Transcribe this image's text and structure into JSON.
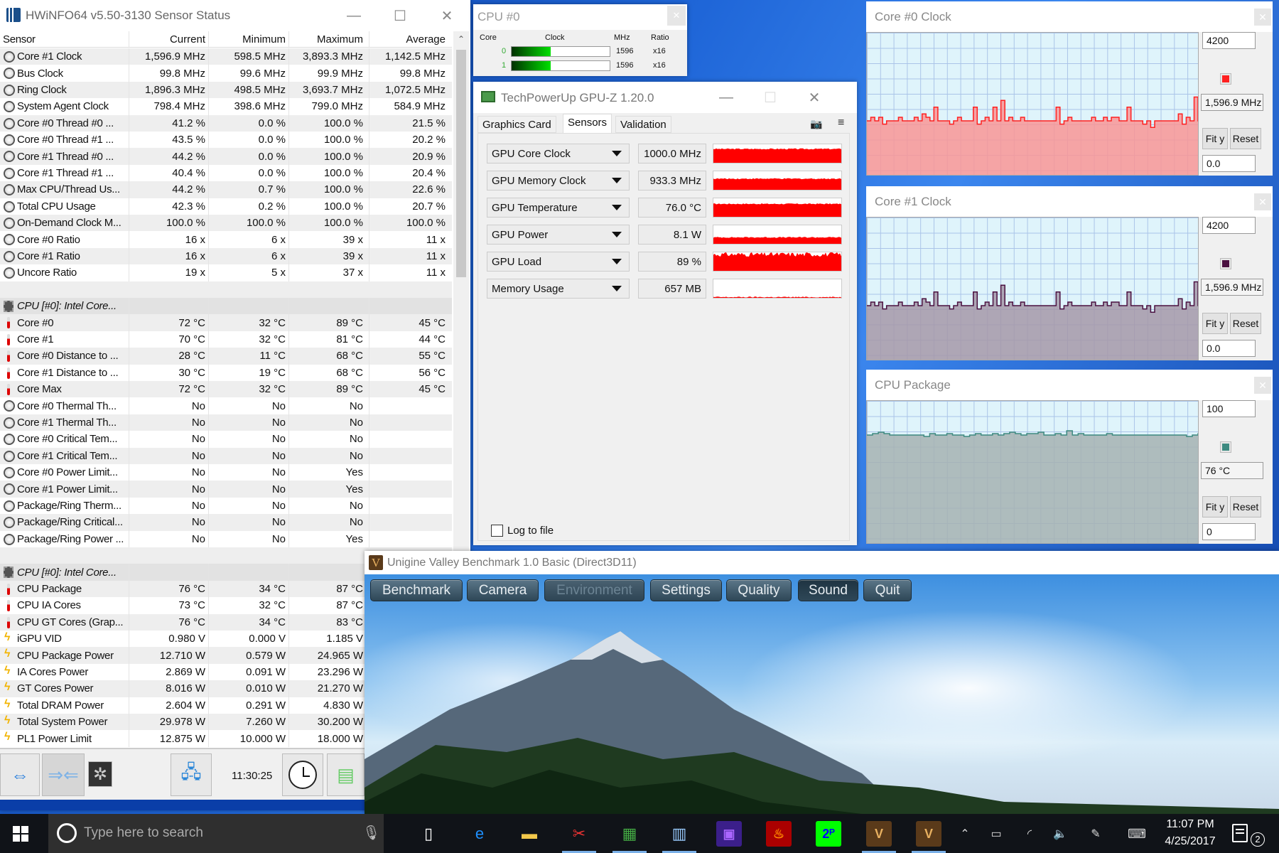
{
  "hwinfo": {
    "title": "HWiNFO64 v5.50-3130 Sensor Status",
    "columns": [
      "Sensor",
      "Current",
      "Minimum",
      "Maximum",
      "Average"
    ],
    "rows": [
      {
        "icon": "clock",
        "name": "Core #1 Clock",
        "cur": "1,596.9 MHz",
        "min": "598.5 MHz",
        "max": "3,893.3 MHz",
        "avg": "1,142.5 MHz"
      },
      {
        "icon": "clock",
        "name": "Bus Clock",
        "cur": "99.8 MHz",
        "min": "99.6 MHz",
        "max": "99.9 MHz",
        "avg": "99.8 MHz"
      },
      {
        "icon": "clock",
        "name": "Ring Clock",
        "cur": "1,896.3 MHz",
        "min": "498.5 MHz",
        "max": "3,693.7 MHz",
        "avg": "1,072.5 MHz"
      },
      {
        "icon": "clock",
        "name": "System Agent Clock",
        "cur": "798.4 MHz",
        "min": "398.6 MHz",
        "max": "799.0 MHz",
        "avg": "584.9 MHz"
      },
      {
        "icon": "clock",
        "name": "Core #0 Thread #0 ...",
        "cur": "41.2 %",
        "min": "0.0 %",
        "max": "100.0 %",
        "avg": "21.5 %"
      },
      {
        "icon": "clock",
        "name": "Core #0 Thread #1 ...",
        "cur": "43.5 %",
        "min": "0.0 %",
        "max": "100.0 %",
        "avg": "20.2 %"
      },
      {
        "icon": "clock",
        "name": "Core #1 Thread #0 ...",
        "cur": "44.2 %",
        "min": "0.0 %",
        "max": "100.0 %",
        "avg": "20.9 %"
      },
      {
        "icon": "clock",
        "name": "Core #1 Thread #1 ...",
        "cur": "40.4 %",
        "min": "0.0 %",
        "max": "100.0 %",
        "avg": "20.4 %"
      },
      {
        "icon": "clock",
        "name": "Max CPU/Thread Us...",
        "cur": "44.2 %",
        "min": "0.7 %",
        "max": "100.0 %",
        "avg": "22.6 %"
      },
      {
        "icon": "clock",
        "name": "Total CPU Usage",
        "cur": "42.3 %",
        "min": "0.2 %",
        "max": "100.0 %",
        "avg": "20.7 %"
      },
      {
        "icon": "clock",
        "name": "On-Demand Clock M...",
        "cur": "100.0 %",
        "min": "100.0 %",
        "max": "100.0 %",
        "avg": "100.0 %"
      },
      {
        "icon": "clock",
        "name": "Core #0 Ratio",
        "cur": "16 x",
        "min": "6 x",
        "max": "39 x",
        "avg": "11 x"
      },
      {
        "icon": "clock",
        "name": "Core #1 Ratio",
        "cur": "16 x",
        "min": "6 x",
        "max": "39 x",
        "avg": "11 x"
      },
      {
        "icon": "clock",
        "name": "Uncore Ratio",
        "cur": "19 x",
        "min": "5 x",
        "max": "37 x",
        "avg": "11 x"
      },
      {
        "type": "blank"
      },
      {
        "type": "group",
        "icon": "chip",
        "name": "CPU [#0]: Intel Core..."
      },
      {
        "icon": "therm",
        "name": "Core #0",
        "cur": "72 °C",
        "min": "32 °C",
        "max": "89 °C",
        "avg": "45 °C"
      },
      {
        "icon": "therm",
        "name": "Core #1",
        "cur": "70 °C",
        "min": "32 °C",
        "max": "81 °C",
        "avg": "44 °C"
      },
      {
        "icon": "therm",
        "name": "Core #0 Distance to ...",
        "cur": "28 °C",
        "min": "11 °C",
        "max": "68 °C",
        "avg": "55 °C"
      },
      {
        "icon": "therm",
        "name": "Core #1 Distance to ...",
        "cur": "30 °C",
        "min": "19 °C",
        "max": "68 °C",
        "avg": "56 °C"
      },
      {
        "icon": "therm",
        "name": "Core Max",
        "cur": "72 °C",
        "min": "32 °C",
        "max": "89 °C",
        "avg": "45 °C"
      },
      {
        "icon": "clock",
        "name": "Core #0 Thermal Th...",
        "cur": "No",
        "min": "No",
        "max": "No",
        "avg": ""
      },
      {
        "icon": "clock",
        "name": "Core #1 Thermal Th...",
        "cur": "No",
        "min": "No",
        "max": "No",
        "avg": ""
      },
      {
        "icon": "clock",
        "name": "Core #0 Critical Tem...",
        "cur": "No",
        "min": "No",
        "max": "No",
        "avg": ""
      },
      {
        "icon": "clock",
        "name": "Core #1 Critical Tem...",
        "cur": "No",
        "min": "No",
        "max": "No",
        "avg": ""
      },
      {
        "icon": "clock",
        "name": "Core #0 Power Limit...",
        "cur": "No",
        "min": "No",
        "max": "Yes",
        "avg": ""
      },
      {
        "icon": "clock",
        "name": "Core #1 Power Limit...",
        "cur": "No",
        "min": "No",
        "max": "Yes",
        "avg": ""
      },
      {
        "icon": "clock",
        "name": "Package/Ring Therm...",
        "cur": "No",
        "min": "No",
        "max": "No",
        "avg": ""
      },
      {
        "icon": "clock",
        "name": "Package/Ring Critical...",
        "cur": "No",
        "min": "No",
        "max": "No",
        "avg": ""
      },
      {
        "icon": "clock",
        "name": "Package/Ring Power ...",
        "cur": "No",
        "min": "No",
        "max": "Yes",
        "avg": ""
      },
      {
        "type": "blank"
      },
      {
        "type": "group",
        "icon": "chip",
        "name": "CPU [#0]: Intel Core..."
      },
      {
        "icon": "therm",
        "name": "CPU Package",
        "cur": "76 °C",
        "min": "34 °C",
        "max": "87 °C"
      },
      {
        "icon": "therm",
        "name": "CPU IA Cores",
        "cur": "73 °C",
        "min": "32 °C",
        "max": "87 °C"
      },
      {
        "icon": "therm",
        "name": "CPU GT Cores (Grap...",
        "cur": "76 °C",
        "min": "34 °C",
        "max": "83 °C"
      },
      {
        "icon": "power",
        "name": "iGPU VID",
        "cur": "0.980 V",
        "min": "0.000 V",
        "max": "1.185 V"
      },
      {
        "icon": "power",
        "name": "CPU Package Power",
        "cur": "12.710 W",
        "min": "0.579 W",
        "max": "24.965 W"
      },
      {
        "icon": "power",
        "name": "IA Cores Power",
        "cur": "2.869 W",
        "min": "0.091 W",
        "max": "23.296 W"
      },
      {
        "icon": "power",
        "name": "GT Cores Power",
        "cur": "8.016 W",
        "min": "0.010 W",
        "max": "21.270 W"
      },
      {
        "icon": "power",
        "name": "Total DRAM Power",
        "cur": "2.604 W",
        "min": "0.291 W",
        "max": "4.830 W"
      },
      {
        "icon": "power",
        "name": "Total System Power",
        "cur": "29.978 W",
        "min": "7.260 W",
        "max": "30.200 W"
      },
      {
        "icon": "power",
        "name": "PL1 Power Limit",
        "cur": "12.875 W",
        "min": "10.000 W",
        "max": "18.000 W"
      }
    ],
    "toolbar_time": "11:30:25"
  },
  "cpu0": {
    "title": "CPU #0",
    "headers": [
      "Core",
      "Clock",
      "MHz",
      "Ratio"
    ],
    "cores": [
      {
        "id": "0",
        "mhz": "1596",
        "ratio": "x16",
        "load": 0.4
      },
      {
        "id": "1",
        "mhz": "1596",
        "ratio": "x16",
        "load": 0.4
      }
    ]
  },
  "gpuz": {
    "title": "TechPowerUp GPU-Z 1.20.0",
    "tabs": [
      "Graphics Card",
      "Sensors",
      "Validation"
    ],
    "active_tab": "Sensors",
    "sensors": [
      {
        "name": "GPU Core Clock",
        "value": "1000.0 MHz",
        "level": 0.75
      },
      {
        "name": "GPU Memory Clock",
        "value": "933.3 MHz",
        "level": 0.6
      },
      {
        "name": "GPU Temperature",
        "value": "76.0 °C",
        "level": 0.7
      },
      {
        "name": "GPU Power",
        "value": "8.1 W",
        "level": 0.35
      },
      {
        "name": "GPU Load",
        "value": "89 %",
        "level": 0.89
      },
      {
        "name": "Memory Usage",
        "value": "657 MB",
        "level": 0.04
      }
    ],
    "log_to_file": "Log to file",
    "colors": {
      "graph": "#ff0000"
    }
  },
  "graphs": [
    {
      "title": "Core #0 Clock",
      "max": "4200",
      "current": "1,596.9 MHz",
      "min": "0.0",
      "fit": "Fit y",
      "reset": "Reset",
      "line": "#ff2020",
      "fill": "#f99595",
      "ymax": 4200,
      "values": [
        1596,
        1700,
        1596,
        1700,
        1500,
        1596,
        1596,
        1596,
        1700,
        1596,
        1596,
        1596,
        1700,
        1596,
        1800,
        1700,
        1596,
        2000,
        1596,
        1596,
        1596,
        1500,
        1596,
        1700,
        1596,
        1596,
        1596,
        2000,
        1500,
        1596,
        1700,
        1596,
        2000,
        1596,
        2200,
        1596,
        1700,
        1596,
        1596,
        1700,
        1596,
        1596,
        1596,
        1596,
        1596,
        1596,
        1596,
        1596,
        2000,
        1500,
        1596,
        1700,
        1596,
        1596,
        1596,
        1596,
        1596,
        1700,
        1596,
        1596,
        1700,
        1596,
        1700,
        1700,
        1596,
        1596,
        2000,
        1596,
        1596,
        1596,
        1500,
        1596,
        1400,
        1596,
        1596,
        1596,
        1596,
        1596,
        1596,
        1800,
        1500,
        1700,
        1596,
        2300,
        1596
      ]
    },
    {
      "title": "Core #1 Clock",
      "max": "4200",
      "current": "1,596.9 MHz",
      "min": "0.0",
      "fit": "Fit y",
      "reset": "Reset",
      "line": "#4a1040",
      "fill": "#a698a8",
      "ymax": 4200,
      "values": [
        1596,
        1700,
        1596,
        1700,
        1500,
        1596,
        1596,
        1596,
        1700,
        1596,
        1596,
        1596,
        1700,
        1596,
        1800,
        1700,
        1596,
        2000,
        1596,
        1596,
        1596,
        1500,
        1596,
        1700,
        1596,
        1596,
        1596,
        2000,
        1500,
        1596,
        1700,
        1596,
        2000,
        1596,
        2200,
        1596,
        1700,
        1596,
        1596,
        1700,
        1596,
        1596,
        1596,
        1596,
        1596,
        1596,
        1596,
        1596,
        2000,
        1500,
        1596,
        1700,
        1596,
        1596,
        1596,
        1596,
        1596,
        1700,
        1596,
        1596,
        1700,
        1596,
        1700,
        1700,
        1596,
        1596,
        2000,
        1596,
        1596,
        1596,
        1500,
        1596,
        1400,
        1596,
        1596,
        1596,
        1596,
        1596,
        1596,
        1800,
        1500,
        1700,
        1596,
        2300,
        1596
      ]
    },
    {
      "title": "CPU Package",
      "max": "100",
      "current": "76 °C",
      "min": "0",
      "fit": "Fit y",
      "reset": "Reset",
      "line": "#3d8a80",
      "fill": "#a6b2b2",
      "ymax": 100,
      "values": [
        76,
        77,
        78,
        77,
        76,
        76,
        76,
        76,
        76,
        76,
        75,
        77,
        76,
        76,
        77,
        76,
        76,
        75,
        76,
        77,
        76,
        76,
        77,
        76,
        77,
        78,
        77,
        76,
        77,
        77,
        78,
        76,
        76,
        77,
        76,
        79,
        76,
        77,
        76,
        76,
        76,
        76,
        77,
        76,
        76,
        76,
        76,
        76,
        76,
        76,
        76,
        76,
        76,
        76,
        76,
        76,
        75,
        76,
        77
      ]
    }
  ],
  "unigine": {
    "title": "Unigine Valley Benchmark 1.0 Basic (Direct3D11)",
    "buttons": [
      "Benchmark",
      "Camera",
      "Environment",
      "Settings",
      "Quality",
      "Sound",
      "Quit"
    ],
    "disabled": "Environment"
  },
  "taskbar": {
    "search_placeholder": "Type here to search",
    "time": "11:07 PM",
    "date": "4/25/2017",
    "notifications": "2",
    "pinned": [
      "task-view",
      "edge",
      "file-explorer",
      "snipping-tool",
      "gpu-z",
      "hwinfo",
      "cpu-z",
      "furmark",
      "prime95",
      "unigine-valley",
      "unigine-valley"
    ]
  }
}
